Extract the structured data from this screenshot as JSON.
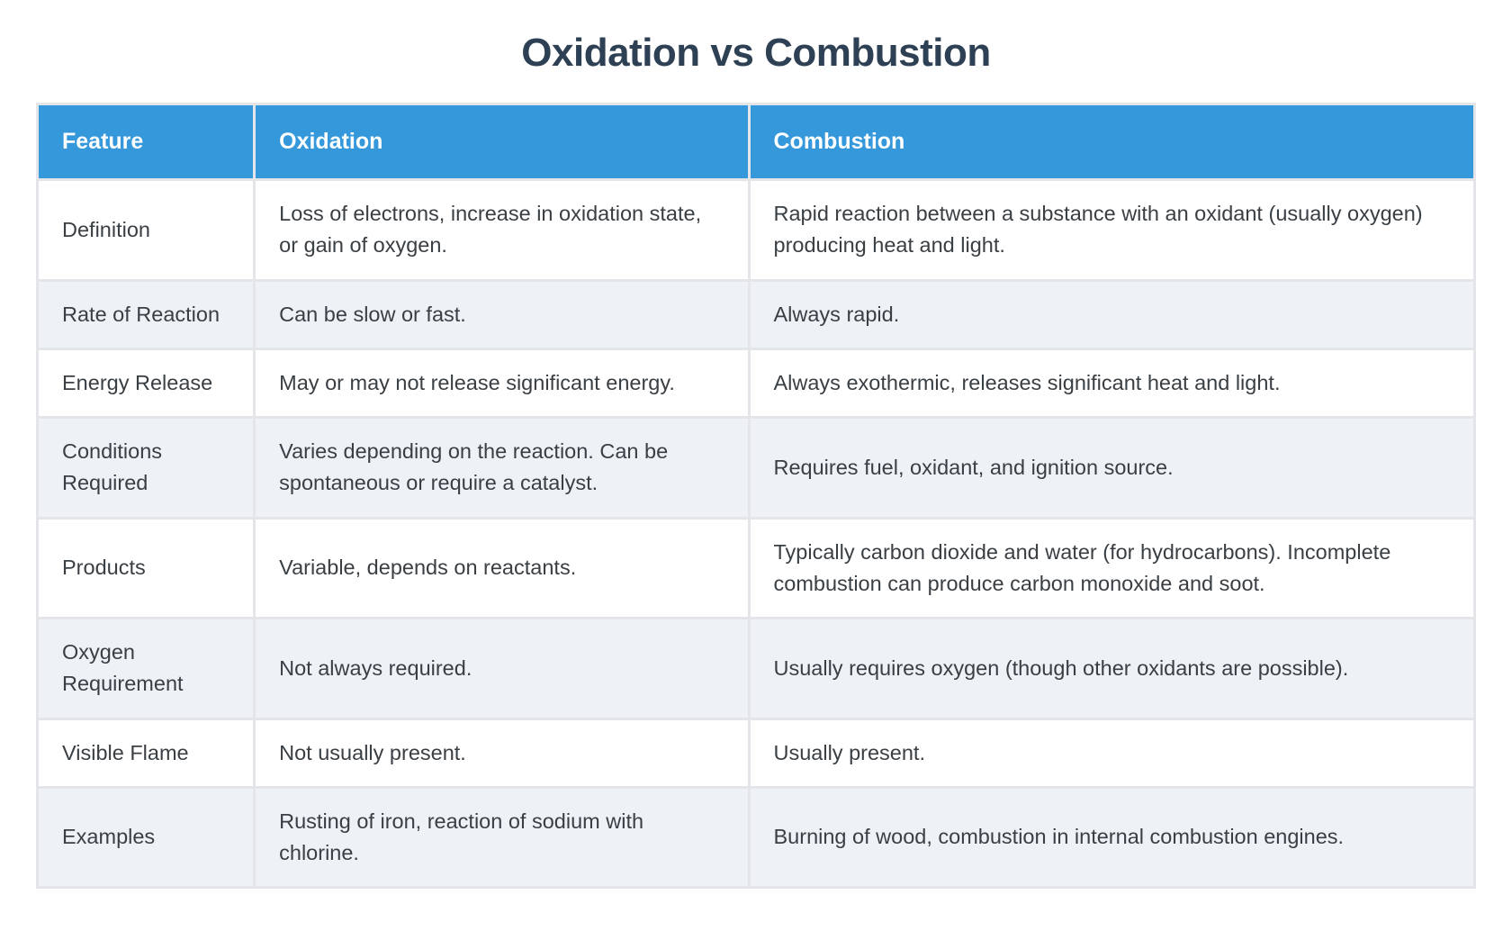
{
  "page": {
    "title": "Oxidation vs Combustion"
  },
  "table": {
    "columns": [
      "Feature",
      "Oxidation",
      "Combustion"
    ],
    "rows": [
      {
        "feature": "Definition",
        "oxidation": "Loss of electrons, increase in oxidation state, or gain of oxygen.",
        "combustion": "Rapid reaction between a substance with an oxidant (usually oxygen) producing heat and light."
      },
      {
        "feature": "Rate of Reaction",
        "oxidation": "Can be slow or fast.",
        "combustion": "Always rapid."
      },
      {
        "feature": "Energy Release",
        "oxidation": "May or may not release significant energy.",
        "combustion": "Always exothermic, releases significant heat and light."
      },
      {
        "feature": "Conditions Required",
        "oxidation": "Varies depending on the reaction. Can be spontaneous or require a catalyst.",
        "combustion": "Requires fuel, oxidant, and ignition source."
      },
      {
        "feature": "Products",
        "oxidation": "Variable, depends on reactants.",
        "combustion": "Typically carbon dioxide and water (for hydrocarbons). Incomplete combustion can produce carbon monoxide and soot."
      },
      {
        "feature": "Oxygen Requirement",
        "oxidation": "Not always required.",
        "combustion": "Usually requires oxygen (though other oxidants are possible)."
      },
      {
        "feature": "Visible Flame",
        "oxidation": "Not usually present.",
        "combustion": "Usually present."
      },
      {
        "feature": "Examples",
        "oxidation": "Rusting of iron, reaction of sodium with chlorine.",
        "combustion": "Burning of wood, combustion in internal combustion engines."
      }
    ],
    "colors": {
      "header_bg": "#3498db",
      "header_text": "#ffffff",
      "row_bg": "#ffffff",
      "row_alt_bg": "#eef2f7",
      "border": "#e3e5e8",
      "title_color": "#2e4053",
      "body_text": "#3a3f44"
    }
  }
}
